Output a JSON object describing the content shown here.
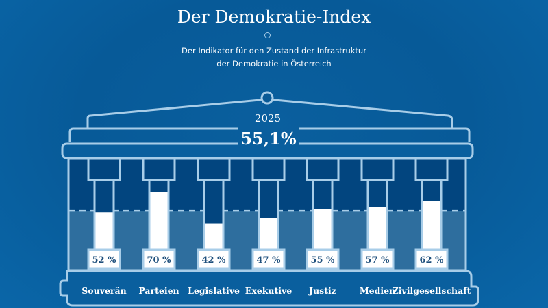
{
  "header": {
    "title": "Der Demokratie-Index",
    "subtitle_line1": "Der Indikator für den Zustand der Infrastruktur",
    "subtitle_line2": "der Demokratie in Österreich"
  },
  "chart_data": {
    "type": "bar",
    "title": "Der Demokratie-Index",
    "year": "2025",
    "index_value": 55.1,
    "index_label": "55,1%",
    "categories": [
      "Souverän",
      "Parteien",
      "Legislative",
      "Exekutive",
      "Justiz",
      "Medien",
      "Zivilgesellschaft"
    ],
    "values": [
      52,
      70,
      42,
      47,
      55,
      57,
      62
    ],
    "value_labels": [
      "52 %",
      "70 %",
      "42 %",
      "47 %",
      "55 %",
      "57 %",
      "62 %"
    ],
    "reference_line": {
      "value": 55.1,
      "style": "dashed"
    },
    "ylim": [
      0,
      100
    ],
    "xlabel": "",
    "ylabel": ""
  },
  "colors": {
    "background": "#075a98",
    "outline": "#a8cde8",
    "column_dark": "#02457f",
    "column_light": "#2e6e9e",
    "bar_fill": "#ffffff",
    "label_text": "#1e4f7c"
  }
}
